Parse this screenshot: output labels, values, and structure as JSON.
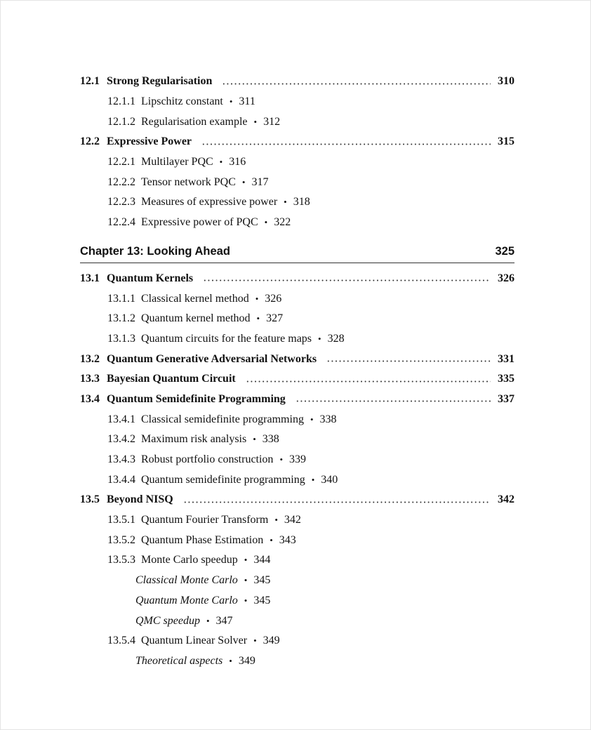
{
  "before_chapter": [
    {
      "level": "section",
      "num": "12.1",
      "title": "Strong Regularisation",
      "page": "310"
    },
    {
      "level": "subsection",
      "num": "12.1.1",
      "title": "Lipschitz constant",
      "page": "311"
    },
    {
      "level": "subsection",
      "num": "12.1.2",
      "title": "Regularisation example",
      "page": "312"
    },
    {
      "level": "section",
      "num": "12.2",
      "title": "Expressive Power",
      "page": "315"
    },
    {
      "level": "subsection",
      "num": "12.2.1",
      "title": "Multilayer PQC",
      "page": "316"
    },
    {
      "level": "subsection",
      "num": "12.2.2",
      "title": "Tensor network PQC",
      "page": "317"
    },
    {
      "level": "subsection",
      "num": "12.2.3",
      "title": "Measures of expressive power",
      "page": "318"
    },
    {
      "level": "subsection",
      "num": "12.2.4",
      "title": "Expressive power of PQC",
      "page": "322"
    }
  ],
  "chapter": {
    "title": "Chapter 13: Looking Ahead",
    "page": "325"
  },
  "after_chapter": [
    {
      "level": "section",
      "num": "13.1",
      "title": "Quantum Kernels",
      "page": "326"
    },
    {
      "level": "subsection",
      "num": "13.1.1",
      "title": "Classical kernel method",
      "page": "326"
    },
    {
      "level": "subsection",
      "num": "13.1.2",
      "title": "Quantum kernel method",
      "page": "327"
    },
    {
      "level": "subsection",
      "num": "13.1.3",
      "title": "Quantum circuits for the feature maps",
      "page": "328"
    },
    {
      "level": "section",
      "num": "13.2",
      "title": "Quantum Generative Adversarial Networks",
      "page": "331"
    },
    {
      "level": "section",
      "num": "13.3",
      "title": "Bayesian Quantum Circuit",
      "page": "335"
    },
    {
      "level": "section",
      "num": "13.4",
      "title": "Quantum Semidefinite Programming",
      "page": "337"
    },
    {
      "level": "subsection",
      "num": "13.4.1",
      "title": "Classical semidefinite programming",
      "page": "338"
    },
    {
      "level": "subsection",
      "num": "13.4.2",
      "title": "Maximum risk analysis",
      "page": "338"
    },
    {
      "level": "subsection",
      "num": "13.4.3",
      "title": "Robust portfolio construction",
      "page": "339"
    },
    {
      "level": "subsection",
      "num": "13.4.4",
      "title": "Quantum semidefinite programming",
      "page": "340"
    },
    {
      "level": "section",
      "num": "13.5",
      "title": "Beyond NISQ",
      "page": "342"
    },
    {
      "level": "subsection",
      "num": "13.5.1",
      "title": "Quantum Fourier Transform",
      "page": "342"
    },
    {
      "level": "subsection",
      "num": "13.5.2",
      "title": "Quantum Phase Estimation",
      "page": "343"
    },
    {
      "level": "subsection",
      "num": "13.5.3",
      "title": "Monte Carlo speedup",
      "page": "344"
    },
    {
      "level": "subsubsection",
      "title": "Classical Monte Carlo",
      "page": "345"
    },
    {
      "level": "subsubsection",
      "title": "Quantum Monte Carlo",
      "page": "345"
    },
    {
      "level": "subsubsection",
      "title": "QMC speedup",
      "page": "347"
    },
    {
      "level": "subsection",
      "num": "13.5.4",
      "title": "Quantum Linear Solver",
      "page": "349"
    },
    {
      "level": "subsubsection",
      "title": "Theoretical aspects",
      "page": "349"
    }
  ],
  "bullet": "•"
}
